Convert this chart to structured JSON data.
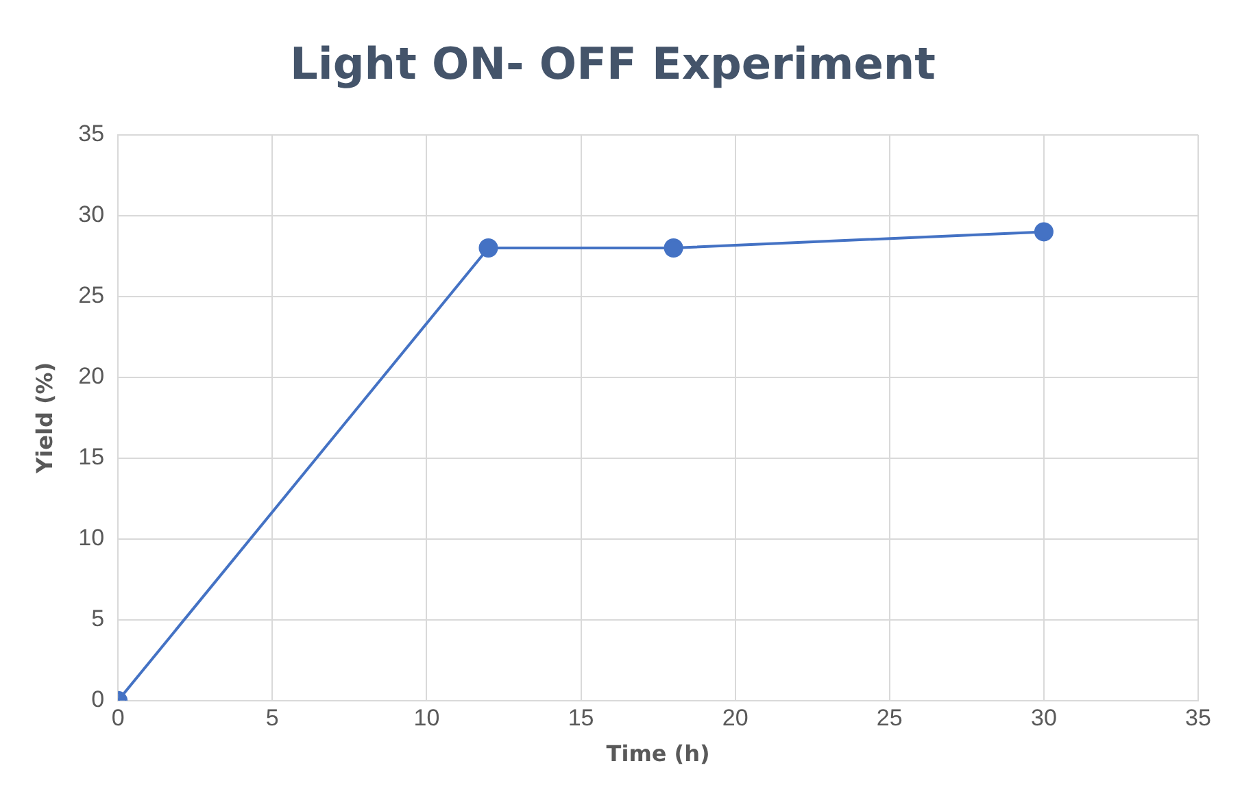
{
  "chart_data": {
    "type": "line",
    "title": "Light ON- OFF Experiment",
    "xlabel": "Time (h)",
    "ylabel": "Yield (%)",
    "x": [
      0,
      12,
      18,
      30
    ],
    "series": [
      {
        "color": "#4472c4",
        "values": [
          0,
          28,
          28,
          29
        ]
      }
    ],
    "xlim": [
      0,
      35
    ],
    "xticks": [
      0,
      5,
      10,
      15,
      20,
      25,
      30,
      35
    ],
    "ylim": [
      0,
      35
    ],
    "yticks": [
      0,
      5,
      10,
      15,
      20,
      25,
      30,
      35
    ],
    "grid": true,
    "legend": false,
    "marker": "circle",
    "line_style": "solid"
  }
}
